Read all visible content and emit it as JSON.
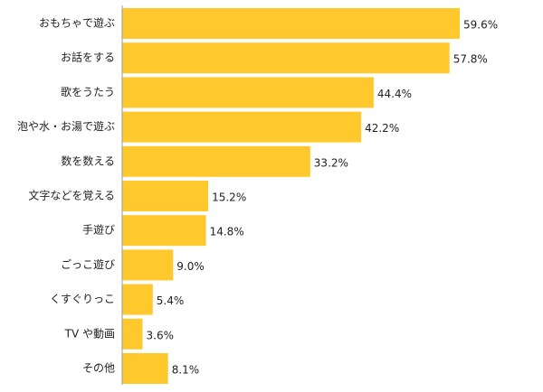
{
  "chart_data": {
    "type": "bar",
    "orientation": "horizontal",
    "categories": [
      "おもちゃで遊ぶ",
      "お話をする",
      "歌をうたう",
      "泡や水・お湯で遊ぶ",
      "数を数える",
      "文字などを覚える",
      "手遊び",
      "ごっこ遊び",
      "くすぐりっこ",
      "TV や動画",
      "その他"
    ],
    "values": [
      59.6,
      57.8,
      44.4,
      42.2,
      33.2,
      15.2,
      14.8,
      9.0,
      5.4,
      3.6,
      8.1
    ],
    "value_labels": [
      "59.6%",
      "57.8%",
      "44.4%",
      "42.2%",
      "33.2%",
      "15.2%",
      "14.8%",
      "9.0%",
      "5.4%",
      "3.6%",
      "8.1%"
    ],
    "xlim": [
      0,
      60
    ],
    "grid": false,
    "legend": "none",
    "bar_color": "#FFC82C"
  }
}
